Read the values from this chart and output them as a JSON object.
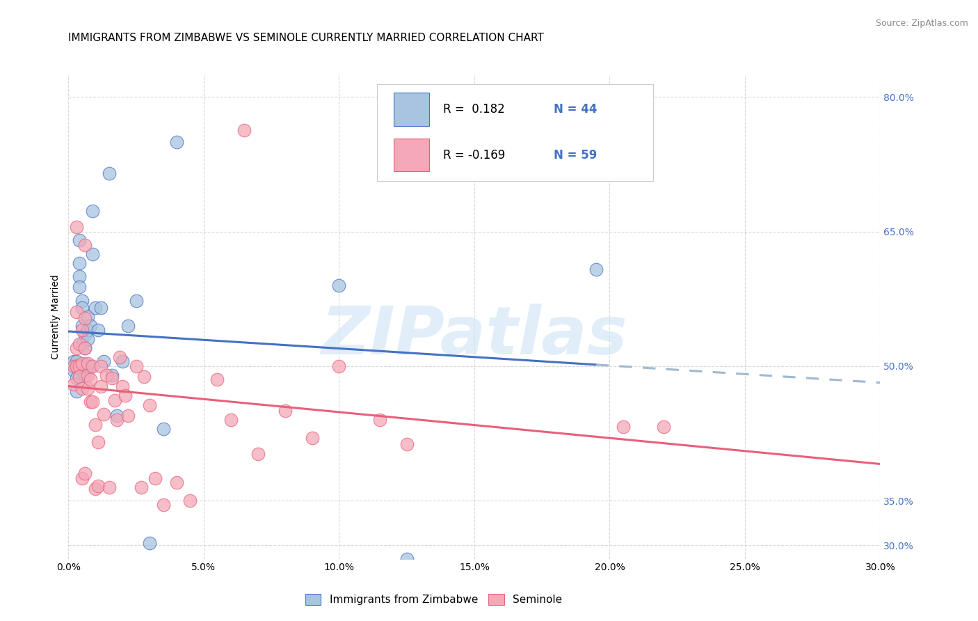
{
  "title": "IMMIGRANTS FROM ZIMBABWE VS SEMINOLE CURRENTLY MARRIED CORRELATION CHART",
  "source": "Source: ZipAtlas.com",
  "ylabel": "Currently Married",
  "xlim": [
    0.0,
    0.3
  ],
  "ylim": [
    0.285,
    0.825
  ],
  "xticks": [
    0.0,
    0.05,
    0.1,
    0.15,
    0.2,
    0.25,
    0.3
  ],
  "yticks": [
    0.3,
    0.35,
    0.5,
    0.65,
    0.8
  ],
  "ytick_labels": [
    "30.0%",
    "35.0%",
    "50.0%",
    "65.0%",
    "80.0%"
  ],
  "xtick_labels": [
    "0.0%",
    "5.0%",
    "10.0%",
    "15.0%",
    "20.0%",
    "25.0%",
    "30.0%"
  ],
  "blue_fill": "#a8c4e0",
  "blue_edge": "#4472c4",
  "pink_fill": "#f4a8b8",
  "pink_edge": "#e8607a",
  "blue_line": "#4472c4",
  "pink_line": "#e8607a",
  "dashed_line": "#a0b8d0",
  "tick_color": "#4472c4",
  "legend_label1": "Immigrants from Zimbabwe",
  "legend_label2": "Seminole",
  "blue_x": [
    0.002,
    0.002,
    0.003,
    0.003,
    0.003,
    0.003,
    0.003,
    0.004,
    0.004,
    0.004,
    0.004,
    0.005,
    0.005,
    0.005,
    0.005,
    0.005,
    0.006,
    0.006,
    0.006,
    0.006,
    0.007,
    0.007,
    0.007,
    0.007,
    0.008,
    0.008,
    0.009,
    0.009,
    0.01,
    0.011,
    0.012,
    0.013,
    0.015,
    0.016,
    0.018,
    0.02,
    0.022,
    0.025,
    0.03,
    0.035,
    0.04,
    0.1,
    0.125,
    0.195
  ],
  "blue_y": [
    0.495,
    0.505,
    0.505,
    0.5,
    0.498,
    0.487,
    0.472,
    0.64,
    0.615,
    0.6,
    0.588,
    0.573,
    0.565,
    0.545,
    0.525,
    0.5,
    0.535,
    0.52,
    0.502,
    0.49,
    0.555,
    0.54,
    0.53,
    0.5,
    0.545,
    0.5,
    0.673,
    0.625,
    0.565,
    0.54,
    0.565,
    0.505,
    0.715,
    0.49,
    0.445,
    0.505,
    0.545,
    0.573,
    0.303,
    0.43,
    0.75,
    0.59,
    0.285,
    0.608
  ],
  "pink_x": [
    0.002,
    0.002,
    0.003,
    0.003,
    0.003,
    0.003,
    0.004,
    0.004,
    0.004,
    0.005,
    0.005,
    0.005,
    0.005,
    0.006,
    0.006,
    0.006,
    0.006,
    0.007,
    0.007,
    0.007,
    0.008,
    0.008,
    0.009,
    0.009,
    0.01,
    0.01,
    0.011,
    0.011,
    0.012,
    0.012,
    0.013,
    0.014,
    0.015,
    0.016,
    0.017,
    0.018,
    0.019,
    0.02,
    0.021,
    0.022,
    0.025,
    0.027,
    0.028,
    0.03,
    0.032,
    0.035,
    0.04,
    0.045,
    0.055,
    0.06,
    0.065,
    0.07,
    0.08,
    0.09,
    0.1,
    0.115,
    0.125,
    0.205,
    0.22
  ],
  "pink_y": [
    0.48,
    0.5,
    0.655,
    0.56,
    0.52,
    0.5,
    0.525,
    0.5,
    0.488,
    0.54,
    0.503,
    0.475,
    0.375,
    0.38,
    0.635,
    0.553,
    0.52,
    0.503,
    0.49,
    0.475,
    0.485,
    0.46,
    0.5,
    0.46,
    0.435,
    0.363,
    0.415,
    0.366,
    0.5,
    0.477,
    0.446,
    0.49,
    0.365,
    0.487,
    0.462,
    0.44,
    0.51,
    0.477,
    0.467,
    0.445,
    0.5,
    0.365,
    0.488,
    0.456,
    0.375,
    0.345,
    0.37,
    0.35,
    0.485,
    0.44,
    0.763,
    0.402,
    0.45,
    0.42,
    0.5,
    0.44,
    0.413,
    0.432,
    0.432
  ],
  "watermark": "ZIPatlas",
  "title_fontsize": 11,
  "ylabel_fontsize": 10,
  "tick_fontsize": 10,
  "legend_fontsize": 12
}
